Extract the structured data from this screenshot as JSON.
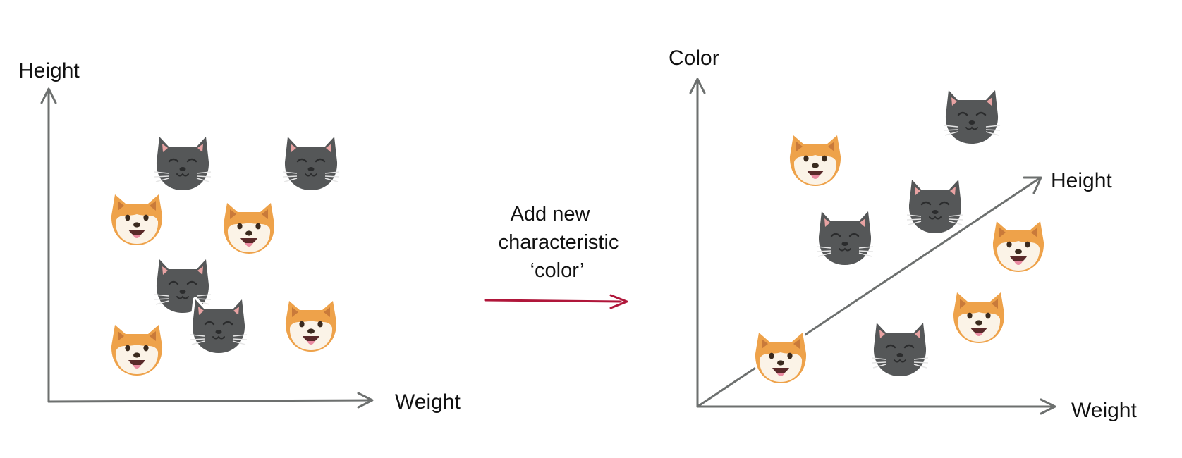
{
  "left_plot": {
    "y_axis_label": "Height",
    "x_axis_label": "Weight"
  },
  "transition": {
    "line1": "Add new",
    "line2": "characteristic",
    "line3": "‘color’"
  },
  "right_plot": {
    "y_axis_label": "Color",
    "diagonal_axis_label": "Height",
    "x_axis_label": "Weight"
  },
  "colors": {
    "axis": "#6d706f",
    "arrow": "#b0163a",
    "cat_fur": "#555758",
    "cat_inner_ear": "#e8a2a2",
    "dog_fur": "#eea24a",
    "dog_face": "#fbf3e7"
  },
  "icons": {
    "cat": "cat-face-icon",
    "dog": "shiba-dog-face-icon"
  }
}
